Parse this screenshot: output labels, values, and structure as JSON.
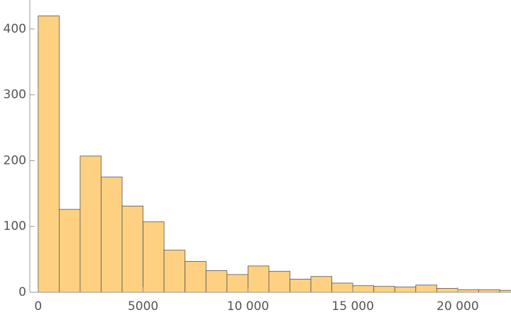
{
  "chart_data": {
    "type": "histogram",
    "bins": [
      0,
      1000,
      2000,
      3000,
      4000,
      5000,
      6000,
      7000,
      8000,
      9000,
      10000,
      11000,
      12000,
      13000,
      14000,
      15000,
      16000,
      17000,
      18000,
      19000,
      20000,
      21000,
      22000,
      23000
    ],
    "values": [
      420,
      126,
      207,
      175,
      131,
      107,
      64,
      47,
      33,
      27,
      40,
      32,
      20,
      24,
      14,
      10,
      9,
      8,
      11,
      6,
      4,
      4,
      3
    ],
    "color": "#fdd181",
    "xlim": [
      -400,
      22540
    ],
    "xticks": [
      0,
      5000,
      {
        "value": 10000,
        "label": "10 000"
      },
      {
        "value": 15000,
        "label": "15 000"
      },
      {
        "value": 20000,
        "label": "20 000"
      }
    ],
    "ylim": [
      0,
      444
    ],
    "yticks": [
      0,
      100,
      200,
      300,
      400
    ],
    "grid": false
  }
}
